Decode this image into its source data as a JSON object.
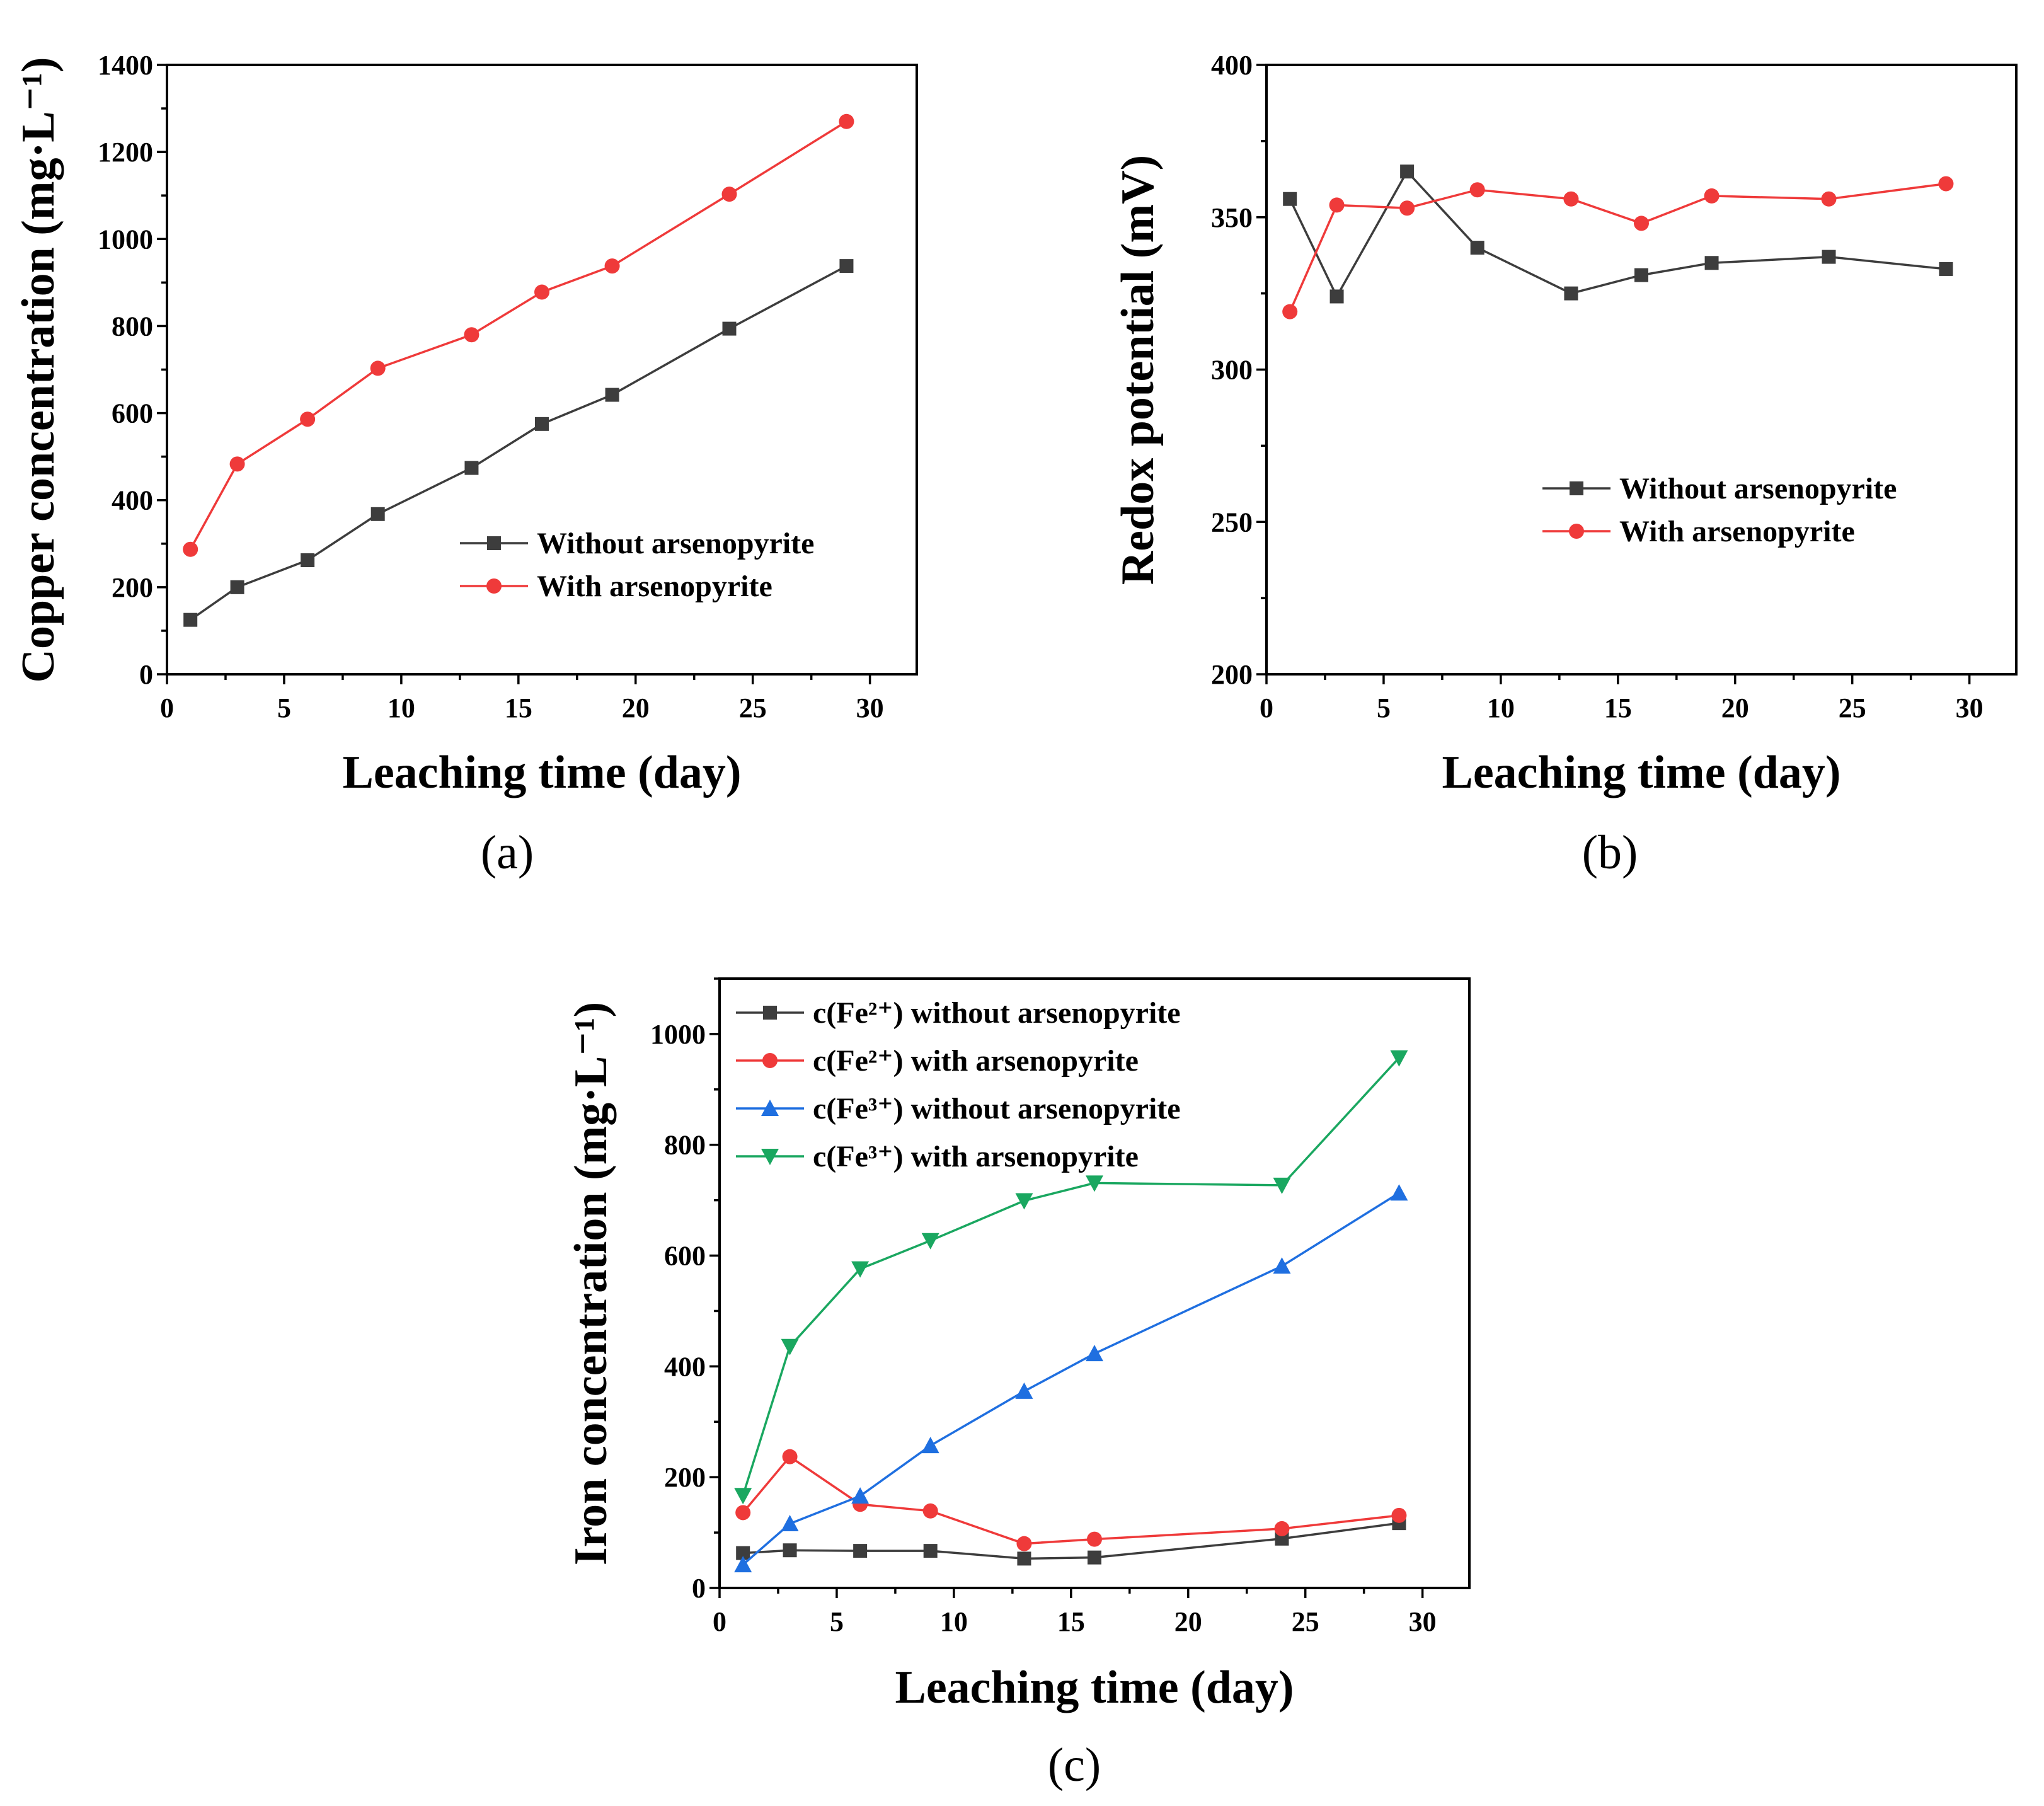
{
  "chart_data": [
    {
      "id": "a",
      "type": "line",
      "panel_label": "(a)",
      "title": "",
      "xlabel": "Leaching time (day)",
      "ylabel": "Copper concentration (mg·L⁻¹)",
      "xlim": [
        0,
        32
      ],
      "ylim": [
        0,
        1400
      ],
      "xticks": [
        0,
        5,
        10,
        15,
        20,
        25,
        30
      ],
      "yticks": [
        0,
        200,
        400,
        600,
        800,
        1000,
        1200,
        1400
      ],
      "legend_position": "center-right",
      "grid": false,
      "series": [
        {
          "name": "Without arsenopyrite",
          "color": "#3d3d3d",
          "marker": "square",
          "x": [
            1,
            3,
            6,
            9,
            13,
            16,
            19,
            24,
            29
          ],
          "values": [
            125,
            200,
            262,
            368,
            474,
            575,
            642,
            794,
            938
          ]
        },
        {
          "name": "With arsenopyrite",
          "color": "#ef3a3a",
          "marker": "circle",
          "x": [
            1,
            3,
            6,
            9,
            13,
            16,
            19,
            24,
            29
          ],
          "values": [
            287,
            483,
            586,
            703,
            780,
            878,
            938,
            1103,
            1270
          ]
        }
      ]
    },
    {
      "id": "b",
      "type": "line",
      "panel_label": "(b)",
      "title": "",
      "xlabel": "Leaching time (day)",
      "ylabel": "Redox potential (mV)",
      "xlim": [
        0,
        32
      ],
      "ylim": [
        200,
        400
      ],
      "xticks": [
        0,
        5,
        10,
        15,
        20,
        25,
        30
      ],
      "yticks": [
        200,
        250,
        300,
        350,
        400
      ],
      "legend_position": "center-right",
      "grid": false,
      "series": [
        {
          "name": "Without arsenopyrite",
          "color": "#3d3d3d",
          "marker": "square",
          "x": [
            1,
            3,
            6,
            9,
            13,
            16,
            19,
            24,
            29
          ],
          "values": [
            356,
            324,
            365,
            340,
            325,
            331,
            335,
            337,
            333
          ]
        },
        {
          "name": "With arsenopyrite",
          "color": "#ef3a3a",
          "marker": "circle",
          "x": [
            1,
            3,
            6,
            9,
            13,
            16,
            19,
            24,
            29
          ],
          "values": [
            319,
            354,
            353,
            359,
            356,
            348,
            357,
            356,
            361
          ]
        }
      ]
    },
    {
      "id": "c",
      "type": "line",
      "panel_label": "(c)",
      "title": "",
      "xlabel": "Leaching time (day)",
      "ylabel": "Iron concentration (mg·L⁻¹)",
      "xlim": [
        0,
        32
      ],
      "ylim": [
        0,
        1100
      ],
      "xticks": [
        0,
        5,
        10,
        15,
        20,
        25,
        30
      ],
      "yticks": [
        0,
        200,
        400,
        600,
        800,
        1000
      ],
      "legend_position": "top-left",
      "grid": false,
      "series": [
        {
          "name": "c(Fe²⁺) without arsenopyrite",
          "color": "#3d3d3d",
          "marker": "square",
          "x": [
            1,
            3,
            6,
            9,
            13,
            16,
            24,
            29
          ],
          "values": [
            63,
            68,
            67,
            67,
            53,
            55,
            89,
            117
          ]
        },
        {
          "name": "c(Fe²⁺) with arsenopyrite",
          "color": "#ef3a3a",
          "marker": "circle",
          "x": [
            1,
            3,
            6,
            9,
            13,
            16,
            24,
            29
          ],
          "values": [
            136,
            237,
            151,
            139,
            80,
            88,
            107,
            131
          ]
        },
        {
          "name": "c(Fe³⁺) without arsenopyrite",
          "color": "#1f6fe0",
          "marker": "triangle-up",
          "x": [
            1,
            3,
            6,
            9,
            13,
            16,
            24,
            29
          ],
          "values": [
            42,
            116,
            166,
            257,
            355,
            423,
            581,
            713
          ]
        },
        {
          "name": "c(Fe³⁺) with arsenopyrite",
          "color": "#1aa760",
          "marker": "triangle-down",
          "x": [
            1,
            3,
            6,
            9,
            13,
            16,
            24,
            29
          ],
          "values": [
            167,
            436,
            576,
            627,
            699,
            731,
            727,
            957
          ]
        }
      ]
    }
  ]
}
